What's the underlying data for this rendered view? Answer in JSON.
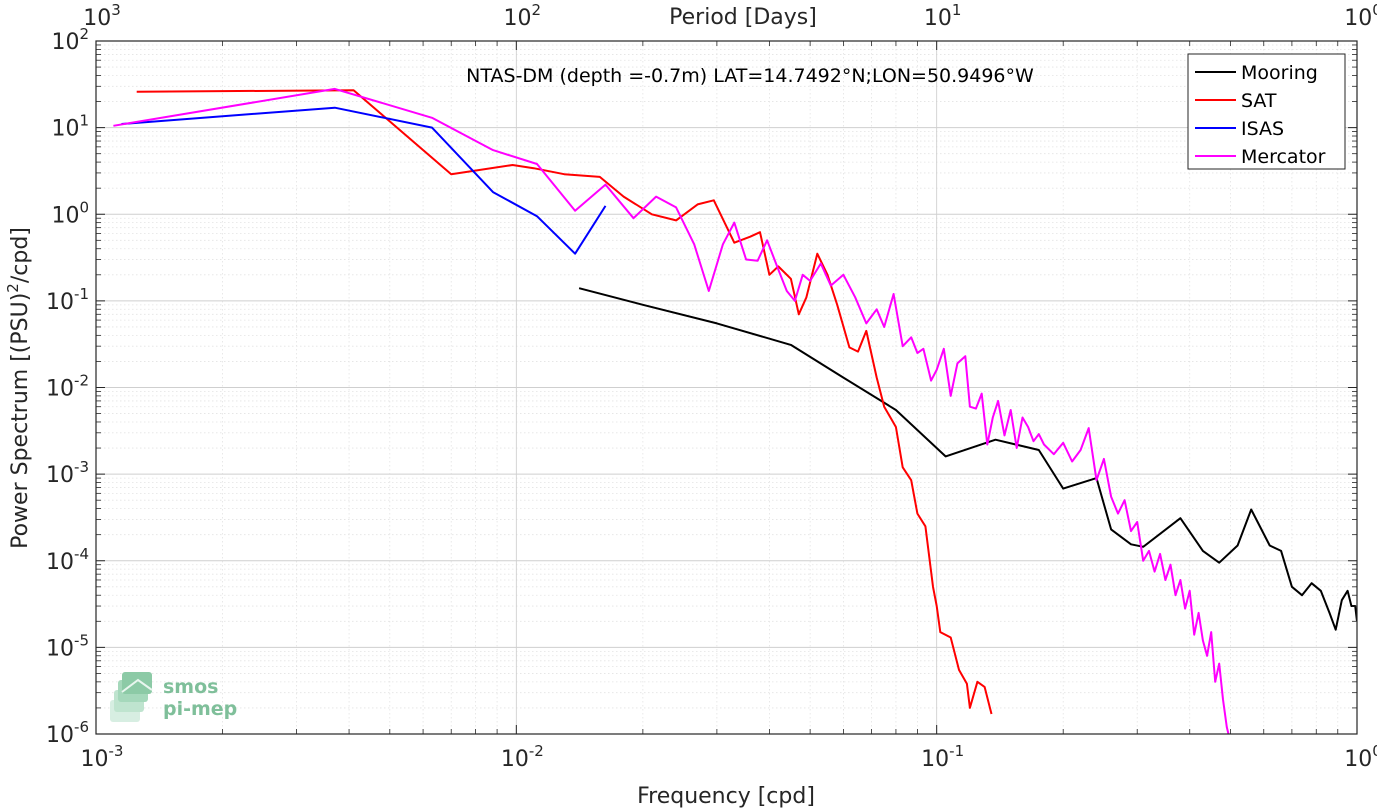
{
  "chart_data": {
    "type": "line",
    "title": "NTAS-DM (depth =-0.7m) LAT=14.7492°N;LON=50.9496°W",
    "xlabel": "Frequency [cpd]",
    "ylabel_main": "Power Spectrum [(PSU)",
    "ylabel_sup": "2",
    "ylabel_tail": "/cpd]",
    "top_xlabel": "Period [Days]",
    "x_scale": "log",
    "y_scale": "log",
    "xlim": [
      0.001,
      1
    ],
    "ylim": [
      1e-06,
      100
    ],
    "grid": true,
    "legend_position": "top-right",
    "x_ticks": [
      {
        "value": 0.001,
        "base": "10",
        "exp": "-3"
      },
      {
        "value": 0.01,
        "base": "10",
        "exp": "-2"
      },
      {
        "value": 0.1,
        "base": "10",
        "exp": "-1"
      },
      {
        "value": 1,
        "base": "10",
        "exp": "0"
      }
    ],
    "y_ticks": [
      {
        "value": 1e-06,
        "base": "10",
        "exp": "-6"
      },
      {
        "value": 1e-05,
        "base": "10",
        "exp": "-5"
      },
      {
        "value": 0.0001,
        "base": "10",
        "exp": "-4"
      },
      {
        "value": 0.001,
        "base": "10",
        "exp": "-3"
      },
      {
        "value": 0.01,
        "base": "10",
        "exp": "-2"
      },
      {
        "value": 0.1,
        "base": "10",
        "exp": "-1"
      },
      {
        "value": 1,
        "base": "10",
        "exp": "0"
      },
      {
        "value": 10,
        "base": "10",
        "exp": "1"
      },
      {
        "value": 100,
        "base": "10",
        "exp": "2"
      }
    ],
    "top_ticks": [
      {
        "period": 1000,
        "base": "10",
        "exp": "3"
      },
      {
        "period": 100,
        "base": "10",
        "exp": "2"
      },
      {
        "period": 10,
        "base": "10",
        "exp": "1"
      },
      {
        "period": 1,
        "base": "10",
        "exp": "0"
      }
    ],
    "series": [
      {
        "name": "Mooring",
        "color": "#000000",
        "points": [
          [
            0.0141,
            0.14
          ],
          [
            0.02,
            0.09
          ],
          [
            0.03,
            0.055
          ],
          [
            0.045,
            0.031
          ],
          [
            0.06,
            0.013
          ],
          [
            0.08,
            0.0055
          ],
          [
            0.105,
            0.0016
          ],
          [
            0.138,
            0.0025
          ],
          [
            0.175,
            0.0019
          ],
          [
            0.2,
            0.00068
          ],
          [
            0.24,
            0.0009
          ],
          [
            0.26,
            0.00023
          ],
          [
            0.29,
            0.000155
          ],
          [
            0.31,
            0.000145
          ],
          [
            0.38,
            0.00031
          ],
          [
            0.43,
            0.00013
          ],
          [
            0.47,
            9.5e-05
          ],
          [
            0.52,
            0.00015
          ],
          [
            0.56,
            0.00039
          ],
          [
            0.62,
            0.00015
          ],
          [
            0.66,
            0.00013
          ],
          [
            0.7,
            5e-05
          ],
          [
            0.74,
            4e-05
          ],
          [
            0.78,
            5.5e-05
          ],
          [
            0.82,
            4.5e-05
          ],
          [
            0.86,
            2.5e-05
          ],
          [
            0.89,
            1.6e-05
          ],
          [
            0.92,
            3.5e-05
          ],
          [
            0.95,
            4.5e-05
          ],
          [
            0.97,
            3e-05
          ],
          [
            0.99,
            3e-05
          ],
          [
            1.0,
            2e-05
          ]
        ]
      },
      {
        "name": "SAT",
        "color": "#ff0000",
        "points": [
          [
            0.00125,
            26
          ],
          [
            0.0041,
            27
          ],
          [
            0.007,
            2.9
          ],
          [
            0.0098,
            3.7
          ],
          [
            0.011,
            3.4
          ],
          [
            0.013,
            2.9
          ],
          [
            0.0158,
            2.7
          ],
          [
            0.018,
            1.6
          ],
          [
            0.021,
            1.0
          ],
          [
            0.024,
            0.85
          ],
          [
            0.027,
            1.3
          ],
          [
            0.0295,
            1.45
          ],
          [
            0.033,
            0.47
          ],
          [
            0.036,
            0.55
          ],
          [
            0.038,
            0.62
          ],
          [
            0.04,
            0.2
          ],
          [
            0.042,
            0.25
          ],
          [
            0.045,
            0.18
          ],
          [
            0.047,
            0.07
          ],
          [
            0.049,
            0.11
          ],
          [
            0.052,
            0.35
          ],
          [
            0.055,
            0.2
          ],
          [
            0.058,
            0.09
          ],
          [
            0.062,
            0.029
          ],
          [
            0.065,
            0.026
          ],
          [
            0.068,
            0.045
          ],
          [
            0.072,
            0.013
          ],
          [
            0.075,
            0.006
          ],
          [
            0.08,
            0.0035
          ],
          [
            0.083,
            0.0012
          ],
          [
            0.087,
            0.00085
          ],
          [
            0.09,
            0.00035
          ],
          [
            0.094,
            0.00025
          ],
          [
            0.098,
            5e-05
          ],
          [
            0.1,
            3e-05
          ],
          [
            0.102,
            1.5e-05
          ],
          [
            0.108,
            1.3e-05
          ],
          [
            0.113,
            5.5e-06
          ],
          [
            0.118,
            3.8e-06
          ],
          [
            0.12,
            2e-06
          ],
          [
            0.125,
            4e-06
          ],
          [
            0.13,
            3.5e-06
          ],
          [
            0.135,
            1.7e-06
          ]
        ]
      },
      {
        "name": "ISAS",
        "color": "#0000ff",
        "points": [
          [
            0.00115,
            11
          ],
          [
            0.0037,
            17
          ],
          [
            0.0063,
            10
          ],
          [
            0.0088,
            1.8
          ],
          [
            0.0112,
            0.95
          ],
          [
            0.0138,
            0.35
          ],
          [
            0.0163,
            1.25
          ]
        ]
      },
      {
        "name": "Mercator",
        "color": "#ff00ff",
        "points": [
          [
            0.0011,
            10.5
          ],
          [
            0.0037,
            28
          ],
          [
            0.0063,
            13
          ],
          [
            0.0088,
            5.5
          ],
          [
            0.0112,
            3.8
          ],
          [
            0.0138,
            1.1
          ],
          [
            0.0163,
            2.2
          ],
          [
            0.019,
            0.9
          ],
          [
            0.0215,
            1.6
          ],
          [
            0.024,
            1.2
          ],
          [
            0.0265,
            0.45
          ],
          [
            0.0287,
            0.13
          ],
          [
            0.031,
            0.45
          ],
          [
            0.033,
            0.8
          ],
          [
            0.0352,
            0.3
          ],
          [
            0.0375,
            0.29
          ],
          [
            0.0395,
            0.5
          ],
          [
            0.042,
            0.23
          ],
          [
            0.044,
            0.13
          ],
          [
            0.046,
            0.1
          ],
          [
            0.048,
            0.2
          ],
          [
            0.05,
            0.17
          ],
          [
            0.053,
            0.27
          ],
          [
            0.056,
            0.15
          ],
          [
            0.06,
            0.2
          ],
          [
            0.064,
            0.11
          ],
          [
            0.068,
            0.055
          ],
          [
            0.072,
            0.08
          ],
          [
            0.075,
            0.05
          ],
          [
            0.079,
            0.12
          ],
          [
            0.083,
            0.03
          ],
          [
            0.087,
            0.038
          ],
          [
            0.09,
            0.025
          ],
          [
            0.093,
            0.028
          ],
          [
            0.097,
            0.012
          ],
          [
            0.1,
            0.016
          ],
          [
            0.104,
            0.028
          ],
          [
            0.108,
            0.008
          ],
          [
            0.112,
            0.019
          ],
          [
            0.117,
            0.023
          ],
          [
            0.12,
            0.006
          ],
          [
            0.124,
            0.0057
          ],
          [
            0.128,
            0.0085
          ],
          [
            0.132,
            0.0022
          ],
          [
            0.136,
            0.0045
          ],
          [
            0.14,
            0.007
          ],
          [
            0.145,
            0.0028
          ],
          [
            0.15,
            0.0055
          ],
          [
            0.155,
            0.002
          ],
          [
            0.16,
            0.0045
          ],
          [
            0.165,
            0.0035
          ],
          [
            0.17,
            0.0024
          ],
          [
            0.175,
            0.0029
          ],
          [
            0.18,
            0.0022
          ],
          [
            0.19,
            0.0017
          ],
          [
            0.2,
            0.0023
          ],
          [
            0.21,
            0.0014
          ],
          [
            0.22,
            0.0019
          ],
          [
            0.23,
            0.0034
          ],
          [
            0.24,
            0.00085
          ],
          [
            0.25,
            0.0015
          ],
          [
            0.26,
            0.00055
          ],
          [
            0.27,
            0.00035
          ],
          [
            0.28,
            0.0005
          ],
          [
            0.29,
            0.00022
          ],
          [
            0.3,
            0.00028
          ],
          [
            0.31,
            0.0001
          ],
          [
            0.32,
            0.00013
          ],
          [
            0.33,
            7.5e-05
          ],
          [
            0.34,
            0.00012
          ],
          [
            0.35,
            6e-05
          ],
          [
            0.36,
            9e-05
          ],
          [
            0.37,
            4e-05
          ],
          [
            0.38,
            6e-05
          ],
          [
            0.39,
            2.8e-05
          ],
          [
            0.4,
            4.5e-05
          ],
          [
            0.41,
            1.4e-05
          ],
          [
            0.42,
            2.5e-05
          ],
          [
            0.43,
            1.2e-05
          ],
          [
            0.44,
            8e-06
          ],
          [
            0.45,
            1.5e-05
          ],
          [
            0.46,
            4e-06
          ],
          [
            0.47,
            6.5e-06
          ],
          [
            0.48,
            2.5e-06
          ],
          [
            0.49,
            1.2e-06
          ],
          [
            0.5,
            8e-07
          ]
        ]
      }
    ]
  },
  "logo": {
    "line1": "smos",
    "line2": "pi-mep"
  }
}
